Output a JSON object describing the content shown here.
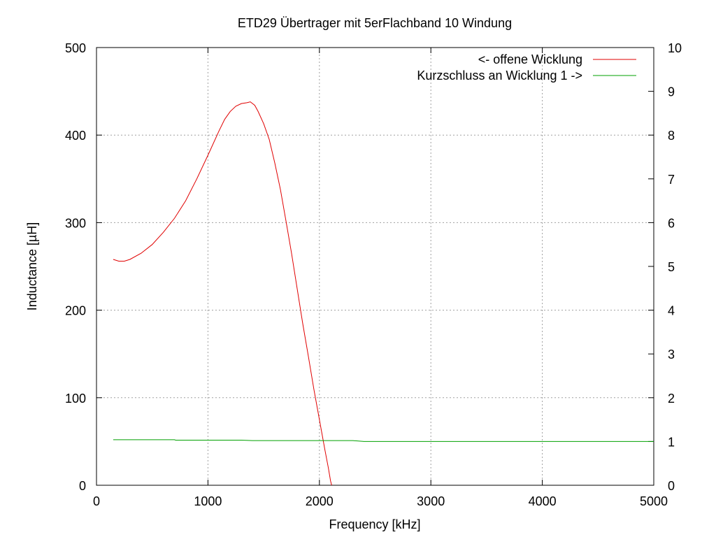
{
  "chart_data": {
    "type": "line",
    "title": "ETD29 Übertrager mit 5erFlachband 10 Windung",
    "xlabel": "Frequency [kHz]",
    "ylabel": "Inductance [µH]",
    "xlim": [
      0,
      5000
    ],
    "ylim": [
      0,
      500
    ],
    "y2lim": [
      0,
      10
    ],
    "x_ticks": [
      0,
      1000,
      2000,
      3000,
      4000,
      5000
    ],
    "y_ticks": [
      0,
      100,
      200,
      300,
      400,
      500
    ],
    "y2_ticks": [
      0,
      1,
      2,
      3,
      4,
      5,
      6,
      7,
      8,
      9,
      10
    ],
    "x_tick_labels": [
      "0",
      "1000",
      "2000",
      "3000",
      "4000",
      "5000"
    ],
    "y_tick_labels": [
      "0",
      "100",
      "200",
      "300",
      "400",
      "500"
    ],
    "y2_tick_labels": [
      "0",
      "1",
      "2",
      "3",
      "4",
      "5",
      "6",
      "7",
      "8",
      "9",
      "10"
    ],
    "grid": true,
    "legend_position": "top-right",
    "series": [
      {
        "name": "<- offene Wicklung",
        "axis": "left",
        "color": "#e00000",
        "x": [
          150,
          200,
          250,
          300,
          400,
          500,
          600,
          700,
          800,
          900,
          1000,
          1100,
          1150,
          1200,
          1250,
          1300,
          1350,
          1380,
          1420,
          1450,
          1500,
          1550,
          1600,
          1650,
          1700,
          1750,
          1800,
          1850,
          1900,
          1950,
          2000,
          2050,
          2080,
          2100,
          2110
        ],
        "values": [
          258,
          256,
          256,
          258,
          265,
          275,
          289,
          305,
          325,
          350,
          377,
          405,
          418,
          427,
          433,
          436,
          437,
          438,
          434,
          427,
          413,
          395,
          368,
          338,
          302,
          265,
          225,
          185,
          148,
          110,
          75,
          40,
          20,
          5,
          0
        ]
      },
      {
        "name": "Kurzschluss an Wicklung 1 ->",
        "axis": "right",
        "color": "#00a000",
        "x": [
          150,
          700,
          710,
          1300,
          1400,
          2300,
          2400,
          5000
        ],
        "values": [
          1.04,
          1.04,
          1.03,
          1.03,
          1.02,
          1.02,
          1.0,
          1.0
        ]
      }
    ]
  }
}
